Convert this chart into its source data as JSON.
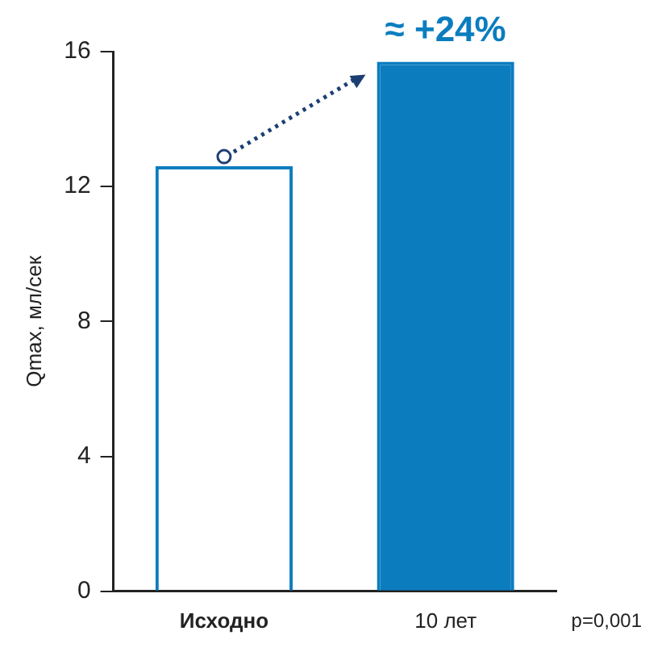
{
  "chart_data": {
    "type": "bar",
    "ylabel": "Qmax, мл/сек",
    "categories": [
      "Исходно",
      "10 лет"
    ],
    "values": [
      12.6,
      15.7
    ],
    "colors": [
      "#0b7dbf",
      "#0b7dbf"
    ],
    "ylim": [
      0,
      16
    ],
    "yticks": [
      0,
      4,
      8,
      12,
      16
    ],
    "annotations": [
      "≈ +24%",
      "p=0,001"
    ]
  }
}
